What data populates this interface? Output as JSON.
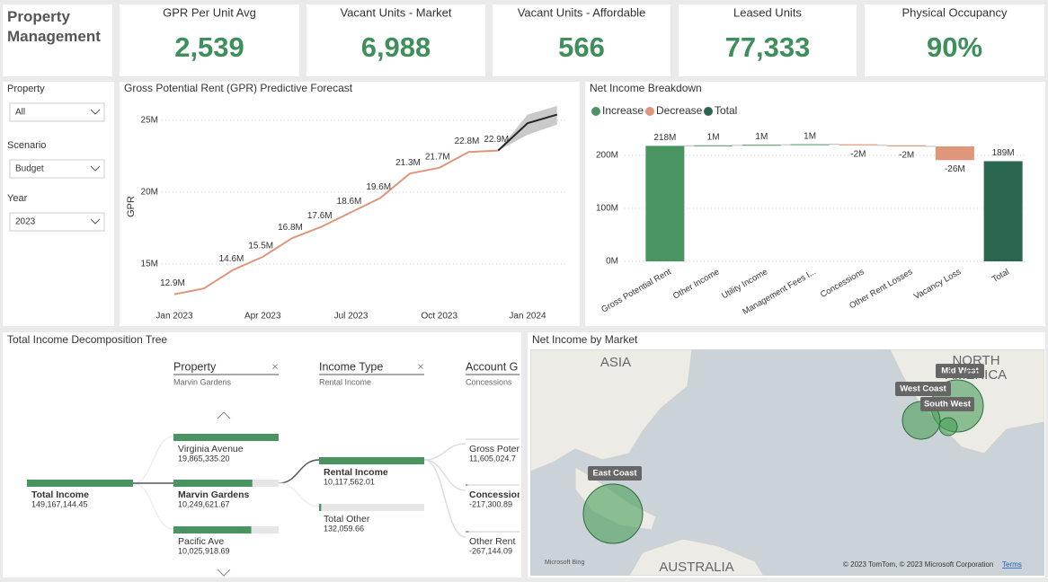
{
  "header": {
    "title": "Property Management"
  },
  "kpis": [
    {
      "label": "GPR Per Unit Avg",
      "value": "2,539"
    },
    {
      "label": "Vacant Units - Market",
      "value": "6,988"
    },
    {
      "label": "Vacant Units - Affordable",
      "value": "566"
    },
    {
      "label": "Leased Units",
      "value": "77,333"
    },
    {
      "label": "Physical Occupancy",
      "value": "90%"
    }
  ],
  "slicers": [
    {
      "label": "Property",
      "value": "All"
    },
    {
      "label": "Scenario",
      "value": "Budget"
    },
    {
      "label": "Year",
      "value": "2023"
    }
  ],
  "chart_data": [
    {
      "type": "line",
      "title": "Gross Potential Rent (GPR) Predictive Forecast",
      "y_label": "GPR",
      "categories": [
        "Jan 2023",
        null,
        null,
        "Apr 2023",
        null,
        null,
        "Jul 2023",
        null,
        null,
        "Oct 2023",
        null,
        null,
        "Jan 2024",
        null
      ],
      "series": [
        {
          "color": "#e0967a",
          "values": [
            12.9,
            13.3,
            14.6,
            15.5,
            16.8,
            17.6,
            18.6,
            19.6,
            21.3,
            21.7,
            22.8,
            22.9,
            null,
            null
          ],
          "value_labels": [
            "12.9M",
            null,
            "14.6M",
            "15.5M",
            "16.8M",
            "17.6M",
            "18.6M",
            "19.6M",
            "21.3M",
            "21.7M",
            "22.8M",
            "22.9M",
            null,
            null
          ]
        },
        {
          "color": "#252525",
          "values": [
            null,
            null,
            null,
            null,
            null,
            null,
            null,
            null,
            null,
            null,
            null,
            22.9,
            24.8,
            25.4
          ]
        }
      ],
      "band": {
        "color": "#c9c9c9",
        "lower": [
          null,
          null,
          null,
          null,
          null,
          null,
          null,
          null,
          null,
          null,
          null,
          22.9,
          24.0,
          24.7
        ],
        "upper": [
          null,
          null,
          null,
          null,
          null,
          null,
          null,
          null,
          null,
          null,
          null,
          22.9,
          25.4,
          26.0
        ]
      },
      "ylim": [
        12.5,
        26.5
      ],
      "yticks": [
        {
          "value": 15,
          "label": "15M"
        },
        {
          "value": 20,
          "label": "20M"
        },
        {
          "value": 25,
          "label": "25M"
        }
      ],
      "grid": true
    },
    {
      "type": "waterfall",
      "title": "Net Income Breakdown",
      "legend": [
        {
          "name": "Increase",
          "color": "#4a9461"
        },
        {
          "name": "Decrease",
          "color": "#e0967a"
        },
        {
          "name": "Total",
          "color": "#2b6650"
        }
      ],
      "categories": [
        "Gross Potential Rent",
        "Other Income",
        "Utility Income",
        "Management Fees I...",
        "Concessions",
        "Other Rent Losses",
        "Vacancy Loss",
        "Total"
      ],
      "values": [
        218,
        1,
        1,
        1,
        -2,
        -2,
        -26,
        189
      ],
      "value_labels": [
        "218M",
        "1M",
        "1M",
        "1M",
        "-2M",
        "-2M",
        "-26M",
        "189M"
      ],
      "ylim": [
        0,
        250
      ],
      "yticks": [
        {
          "value": 0,
          "label": "0M"
        },
        {
          "value": 100,
          "label": "100M"
        },
        {
          "value": 200,
          "label": "200M"
        }
      ],
      "grid": true
    }
  ],
  "decomposition_tree": {
    "title": "Total Income Decomposition Tree",
    "levels": [
      {
        "name": "Property",
        "selection": "Marvin Gardens"
      },
      {
        "name": "Income Type",
        "selection": "Rental Income"
      },
      {
        "name": "Account G",
        "selection": "Concessions"
      }
    ],
    "root": {
      "label": "Total Income",
      "value": "149,167,144.45"
    },
    "columns": [
      [
        {
          "label": "Virginia Avenue",
          "value": "19,865,335.20"
        },
        {
          "label": "Marvin Gardens",
          "value": "10,249,621.67"
        },
        {
          "label": "Pacific Ave",
          "value": "10,025,918.69"
        }
      ],
      [
        {
          "label": "Rental Income",
          "value": "10,117,562.01"
        },
        {
          "label": "Total Other",
          "value": "132,059.66"
        }
      ],
      [
        {
          "label": "Gross Poter",
          "value": "11,605,024.7"
        },
        {
          "label": "Concession",
          "value": "-217,300.89"
        },
        {
          "label": "Other Rent",
          "value": "-267,144.09"
        }
      ]
    ]
  },
  "map": {
    "title": "Net Income by Market",
    "regions": [
      "ASIA",
      "NORTH AMERICA",
      "AUSTRALIA"
    ],
    "markets": [
      "Mid West",
      "West Coast",
      "South West",
      "East Coast"
    ],
    "provider": "Microsoft Bing",
    "attribution": "© 2023 TomTom, © 2023 Microsoft Corporation",
    "terms": "Terms"
  }
}
